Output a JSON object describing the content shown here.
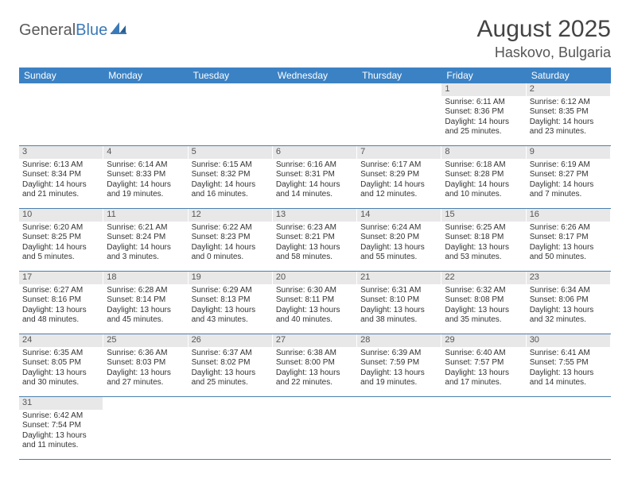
{
  "header": {
    "logo_part1": "General",
    "logo_part2": "Blue",
    "month_title": "August 2025",
    "location": "Haskovo, Bulgaria"
  },
  "colors": {
    "header_bg": "#3b82c4",
    "daynum_bg": "#e8e8e8",
    "row_border": "#4a7fb0",
    "text": "#333333",
    "logo_gray": "#5a5a5a",
    "logo_blue": "#3b7ab8"
  },
  "days_of_week": [
    "Sunday",
    "Monday",
    "Tuesday",
    "Wednesday",
    "Thursday",
    "Friday",
    "Saturday"
  ],
  "weeks": [
    [
      null,
      null,
      null,
      null,
      null,
      {
        "n": "1",
        "sr": "Sunrise: 6:11 AM",
        "ss": "Sunset: 8:36 PM",
        "d1": "Daylight: 14 hours",
        "d2": "and 25 minutes."
      },
      {
        "n": "2",
        "sr": "Sunrise: 6:12 AM",
        "ss": "Sunset: 8:35 PM",
        "d1": "Daylight: 14 hours",
        "d2": "and 23 minutes."
      }
    ],
    [
      {
        "n": "3",
        "sr": "Sunrise: 6:13 AM",
        "ss": "Sunset: 8:34 PM",
        "d1": "Daylight: 14 hours",
        "d2": "and 21 minutes."
      },
      {
        "n": "4",
        "sr": "Sunrise: 6:14 AM",
        "ss": "Sunset: 8:33 PM",
        "d1": "Daylight: 14 hours",
        "d2": "and 19 minutes."
      },
      {
        "n": "5",
        "sr": "Sunrise: 6:15 AM",
        "ss": "Sunset: 8:32 PM",
        "d1": "Daylight: 14 hours",
        "d2": "and 16 minutes."
      },
      {
        "n": "6",
        "sr": "Sunrise: 6:16 AM",
        "ss": "Sunset: 8:31 PM",
        "d1": "Daylight: 14 hours",
        "d2": "and 14 minutes."
      },
      {
        "n": "7",
        "sr": "Sunrise: 6:17 AM",
        "ss": "Sunset: 8:29 PM",
        "d1": "Daylight: 14 hours",
        "d2": "and 12 minutes."
      },
      {
        "n": "8",
        "sr": "Sunrise: 6:18 AM",
        "ss": "Sunset: 8:28 PM",
        "d1": "Daylight: 14 hours",
        "d2": "and 10 minutes."
      },
      {
        "n": "9",
        "sr": "Sunrise: 6:19 AM",
        "ss": "Sunset: 8:27 PM",
        "d1": "Daylight: 14 hours",
        "d2": "and 7 minutes."
      }
    ],
    [
      {
        "n": "10",
        "sr": "Sunrise: 6:20 AM",
        "ss": "Sunset: 8:25 PM",
        "d1": "Daylight: 14 hours",
        "d2": "and 5 minutes."
      },
      {
        "n": "11",
        "sr": "Sunrise: 6:21 AM",
        "ss": "Sunset: 8:24 PM",
        "d1": "Daylight: 14 hours",
        "d2": "and 3 minutes."
      },
      {
        "n": "12",
        "sr": "Sunrise: 6:22 AM",
        "ss": "Sunset: 8:23 PM",
        "d1": "Daylight: 14 hours",
        "d2": "and 0 minutes."
      },
      {
        "n": "13",
        "sr": "Sunrise: 6:23 AM",
        "ss": "Sunset: 8:21 PM",
        "d1": "Daylight: 13 hours",
        "d2": "and 58 minutes."
      },
      {
        "n": "14",
        "sr": "Sunrise: 6:24 AM",
        "ss": "Sunset: 8:20 PM",
        "d1": "Daylight: 13 hours",
        "d2": "and 55 minutes."
      },
      {
        "n": "15",
        "sr": "Sunrise: 6:25 AM",
        "ss": "Sunset: 8:18 PM",
        "d1": "Daylight: 13 hours",
        "d2": "and 53 minutes."
      },
      {
        "n": "16",
        "sr": "Sunrise: 6:26 AM",
        "ss": "Sunset: 8:17 PM",
        "d1": "Daylight: 13 hours",
        "d2": "and 50 minutes."
      }
    ],
    [
      {
        "n": "17",
        "sr": "Sunrise: 6:27 AM",
        "ss": "Sunset: 8:16 PM",
        "d1": "Daylight: 13 hours",
        "d2": "and 48 minutes."
      },
      {
        "n": "18",
        "sr": "Sunrise: 6:28 AM",
        "ss": "Sunset: 8:14 PM",
        "d1": "Daylight: 13 hours",
        "d2": "and 45 minutes."
      },
      {
        "n": "19",
        "sr": "Sunrise: 6:29 AM",
        "ss": "Sunset: 8:13 PM",
        "d1": "Daylight: 13 hours",
        "d2": "and 43 minutes."
      },
      {
        "n": "20",
        "sr": "Sunrise: 6:30 AM",
        "ss": "Sunset: 8:11 PM",
        "d1": "Daylight: 13 hours",
        "d2": "and 40 minutes."
      },
      {
        "n": "21",
        "sr": "Sunrise: 6:31 AM",
        "ss": "Sunset: 8:10 PM",
        "d1": "Daylight: 13 hours",
        "d2": "and 38 minutes."
      },
      {
        "n": "22",
        "sr": "Sunrise: 6:32 AM",
        "ss": "Sunset: 8:08 PM",
        "d1": "Daylight: 13 hours",
        "d2": "and 35 minutes."
      },
      {
        "n": "23",
        "sr": "Sunrise: 6:34 AM",
        "ss": "Sunset: 8:06 PM",
        "d1": "Daylight: 13 hours",
        "d2": "and 32 minutes."
      }
    ],
    [
      {
        "n": "24",
        "sr": "Sunrise: 6:35 AM",
        "ss": "Sunset: 8:05 PM",
        "d1": "Daylight: 13 hours",
        "d2": "and 30 minutes."
      },
      {
        "n": "25",
        "sr": "Sunrise: 6:36 AM",
        "ss": "Sunset: 8:03 PM",
        "d1": "Daylight: 13 hours",
        "d2": "and 27 minutes."
      },
      {
        "n": "26",
        "sr": "Sunrise: 6:37 AM",
        "ss": "Sunset: 8:02 PM",
        "d1": "Daylight: 13 hours",
        "d2": "and 25 minutes."
      },
      {
        "n": "27",
        "sr": "Sunrise: 6:38 AM",
        "ss": "Sunset: 8:00 PM",
        "d1": "Daylight: 13 hours",
        "d2": "and 22 minutes."
      },
      {
        "n": "28",
        "sr": "Sunrise: 6:39 AM",
        "ss": "Sunset: 7:59 PM",
        "d1": "Daylight: 13 hours",
        "d2": "and 19 minutes."
      },
      {
        "n": "29",
        "sr": "Sunrise: 6:40 AM",
        "ss": "Sunset: 7:57 PM",
        "d1": "Daylight: 13 hours",
        "d2": "and 17 minutes."
      },
      {
        "n": "30",
        "sr": "Sunrise: 6:41 AM",
        "ss": "Sunset: 7:55 PM",
        "d1": "Daylight: 13 hours",
        "d2": "and 14 minutes."
      }
    ],
    [
      {
        "n": "31",
        "sr": "Sunrise: 6:42 AM",
        "ss": "Sunset: 7:54 PM",
        "d1": "Daylight: 13 hours",
        "d2": "and 11 minutes."
      },
      null,
      null,
      null,
      null,
      null,
      null
    ]
  ]
}
